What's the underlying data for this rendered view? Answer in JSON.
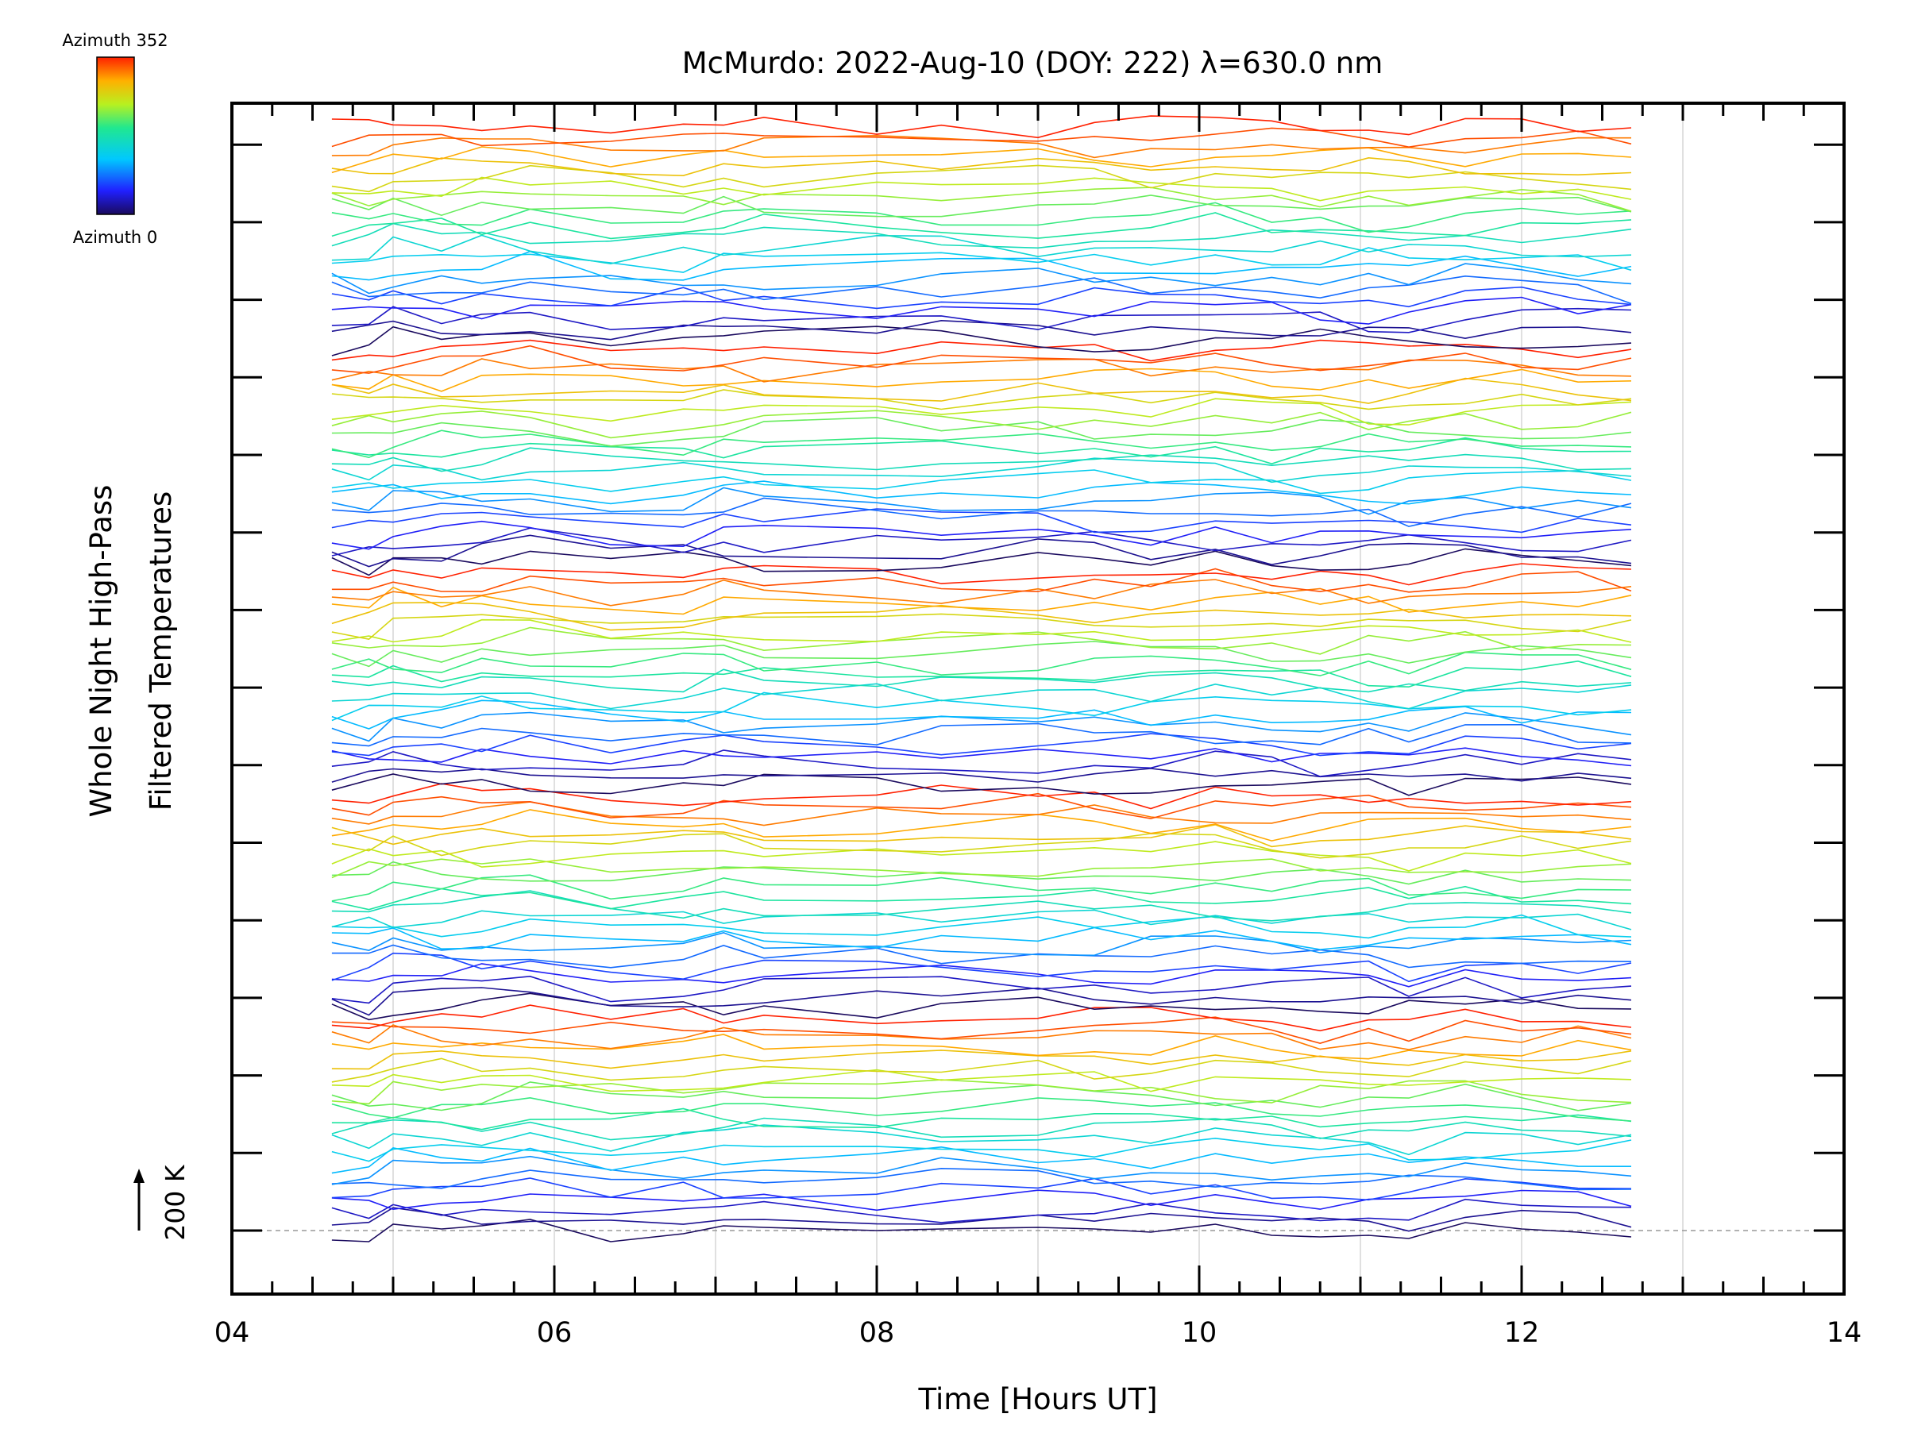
{
  "colorbar": {
    "top_label": "Azimuth 352",
    "bottom_label": "Azimuth 0",
    "colormap": "rainbow (dark blue at 0 to red at 352)"
  },
  "chart_data": {
    "type": "line",
    "title": "McMurdo: 2022-Aug-10 (DOY: 222) λ=630.0 nm",
    "xlabel": "Time [Hours UT]",
    "ylabel_line1": "Whole Night High-Pass",
    "ylabel_line2": "Filtered Temperatures",
    "scale_label": "200 K",
    "xlim": [
      4,
      14
    ],
    "x_ticks": [
      "04",
      "06",
      "08",
      "10",
      "12",
      "14"
    ],
    "x_major": [
      4,
      6,
      8,
      10,
      12,
      14
    ],
    "x_minor_step": 0.25,
    "grid_x": [
      5,
      6,
      7,
      8,
      9,
      10,
      11,
      12,
      13
    ],
    "baseline_dashed": true,
    "y_tick_count": 15,
    "trace_count": 110,
    "time_range_hours": [
      4.62,
      12.68
    ],
    "azimuth_range_deg": [
      0,
      352
    ],
    "series": [
      {
        "name": "",
        "azimuth": 0,
        "x": [
          4.62,
          4.85,
          5.0,
          5.3,
          5.55,
          5.85,
          6.35,
          6.8,
          7.05,
          7.3,
          8.0,
          8.4,
          9.0,
          9.35,
          9.7,
          10.1,
          10.45,
          10.75,
          11.05,
          11.3,
          11.65,
          12.0,
          12.35,
          12.68
        ],
        "y": [
          -12,
          -14,
          8,
          2,
          6,
          14,
          -14,
          -4,
          6,
          4,
          0,
          2,
          4,
          2,
          -2,
          8,
          -6,
          -8,
          -6,
          -10,
          10,
          2,
          -2,
          -8
        ]
      }
    ]
  }
}
